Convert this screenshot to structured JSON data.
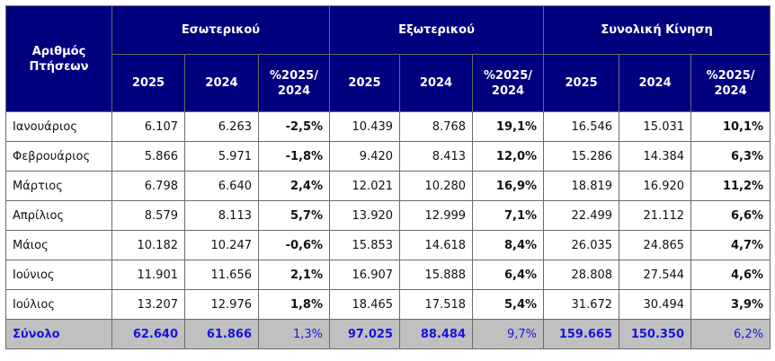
{
  "header": {
    "corner": "Αριθμός Πτήσεων",
    "groups": [
      {
        "title": "Εσωτερικού",
        "columns": [
          "2025",
          "2024",
          "%2025/ 2024"
        ]
      },
      {
        "title": "Εξωτερικού",
        "columns": [
          "2025",
          "2024",
          "%2025/ 2024"
        ]
      },
      {
        "title": "Συνολική Κίνηση",
        "columns": [
          "2025",
          "2024",
          "%2025/ 2024"
        ]
      }
    ]
  },
  "rows": [
    {
      "label": "Ιανουάριος",
      "cells": [
        "6.107",
        "6.263",
        "-2,5%",
        "10.439",
        "8.768",
        "19,1%",
        "16.546",
        "15.031",
        "10,1%"
      ]
    },
    {
      "label": "Φεβρουάριος",
      "cells": [
        "5.866",
        "5.971",
        "-1,8%",
        "9.420",
        "8.413",
        "12,0%",
        "15.286",
        "14.384",
        "6,3%"
      ]
    },
    {
      "label": "Μάρτιος",
      "cells": [
        "6.798",
        "6.640",
        "2,4%",
        "12.021",
        "10.280",
        "16,9%",
        "18.819",
        "16.920",
        "11,2%"
      ]
    },
    {
      "label": "Απρίλιος",
      "cells": [
        "8.579",
        "8.113",
        "5,7%",
        "13.920",
        "12.999",
        "7,1%",
        "22.499",
        "21.112",
        "6,6%"
      ]
    },
    {
      "label": "Μάιος",
      "cells": [
        "10.182",
        "10.247",
        "-0,6%",
        "15.853",
        "14.618",
        "8,4%",
        "26.035",
        "24.865",
        "4,7%"
      ]
    },
    {
      "label": "Ιούνιος",
      "cells": [
        "11.901",
        "11.656",
        "2,1%",
        "16.907",
        "15.888",
        "6,4%",
        "28.808",
        "27.544",
        "4,6%"
      ]
    },
    {
      "label": "Ιούλιος",
      "cells": [
        "13.207",
        "12.976",
        "1,8%",
        "18.465",
        "17.518",
        "5,4%",
        "31.672",
        "30.494",
        "3,9%"
      ]
    }
  ],
  "total": {
    "label": "Σύνολο",
    "cells": [
      "62.640",
      "61.866",
      "1,3%",
      "97.025",
      "88.484",
      "9,7%",
      "159.665",
      "150.350",
      "6,2%"
    ]
  }
}
